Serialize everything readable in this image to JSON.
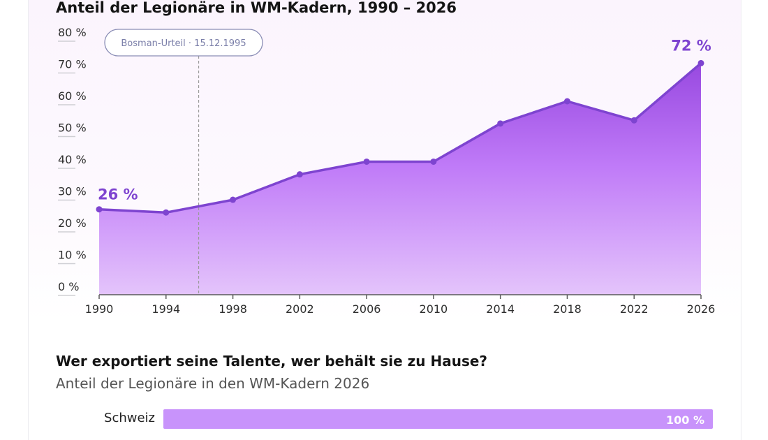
{
  "chart_data": [
    {
      "type": "area",
      "title": "Anteil der Legionäre in WM-Kadern, 1990 – 2026",
      "x": [
        1990,
        1994,
        1998,
        2002,
        2006,
        2010,
        2014,
        2018,
        2022,
        2026
      ],
      "x_tick_labels": [
        "1990",
        "1994",
        "1998",
        "2002",
        "2006",
        "2010",
        "2014",
        "2018",
        "2022",
        "2026"
      ],
      "y_tick_labels": [
        "0 %",
        "10 %",
        "20 %",
        "30 %",
        "40 %",
        "50 %",
        "60 %",
        "70 %",
        "80 %"
      ],
      "series": [
        {
          "values": [
            26,
            25,
            29,
            37,
            41,
            41,
            53,
            60,
            54,
            72
          ]
        }
      ],
      "ylim": [
        0,
        80
      ],
      "y_ticks": [
        0,
        10,
        20,
        30,
        40,
        50,
        60,
        70,
        80
      ],
      "start_label": "26 %",
      "end_label": "72 %",
      "annotation": {
        "label": "Bosman-Urteil · 15.12.1995",
        "x": "1995-12-15"
      },
      "grid": false,
      "color": "#7e44d0"
    },
    {
      "type": "bar",
      "title": "Wer exportiert seine Talente, wer behält sie zu Hause?",
      "subtitle": "Anteil der Legionäre in den WM-Kadern 2026",
      "categories": [
        "Schweiz"
      ],
      "values": [
        100
      ],
      "value_labels": [
        "100 %"
      ],
      "xlim": [
        0,
        100
      ],
      "color": "#c893fb"
    }
  ]
}
